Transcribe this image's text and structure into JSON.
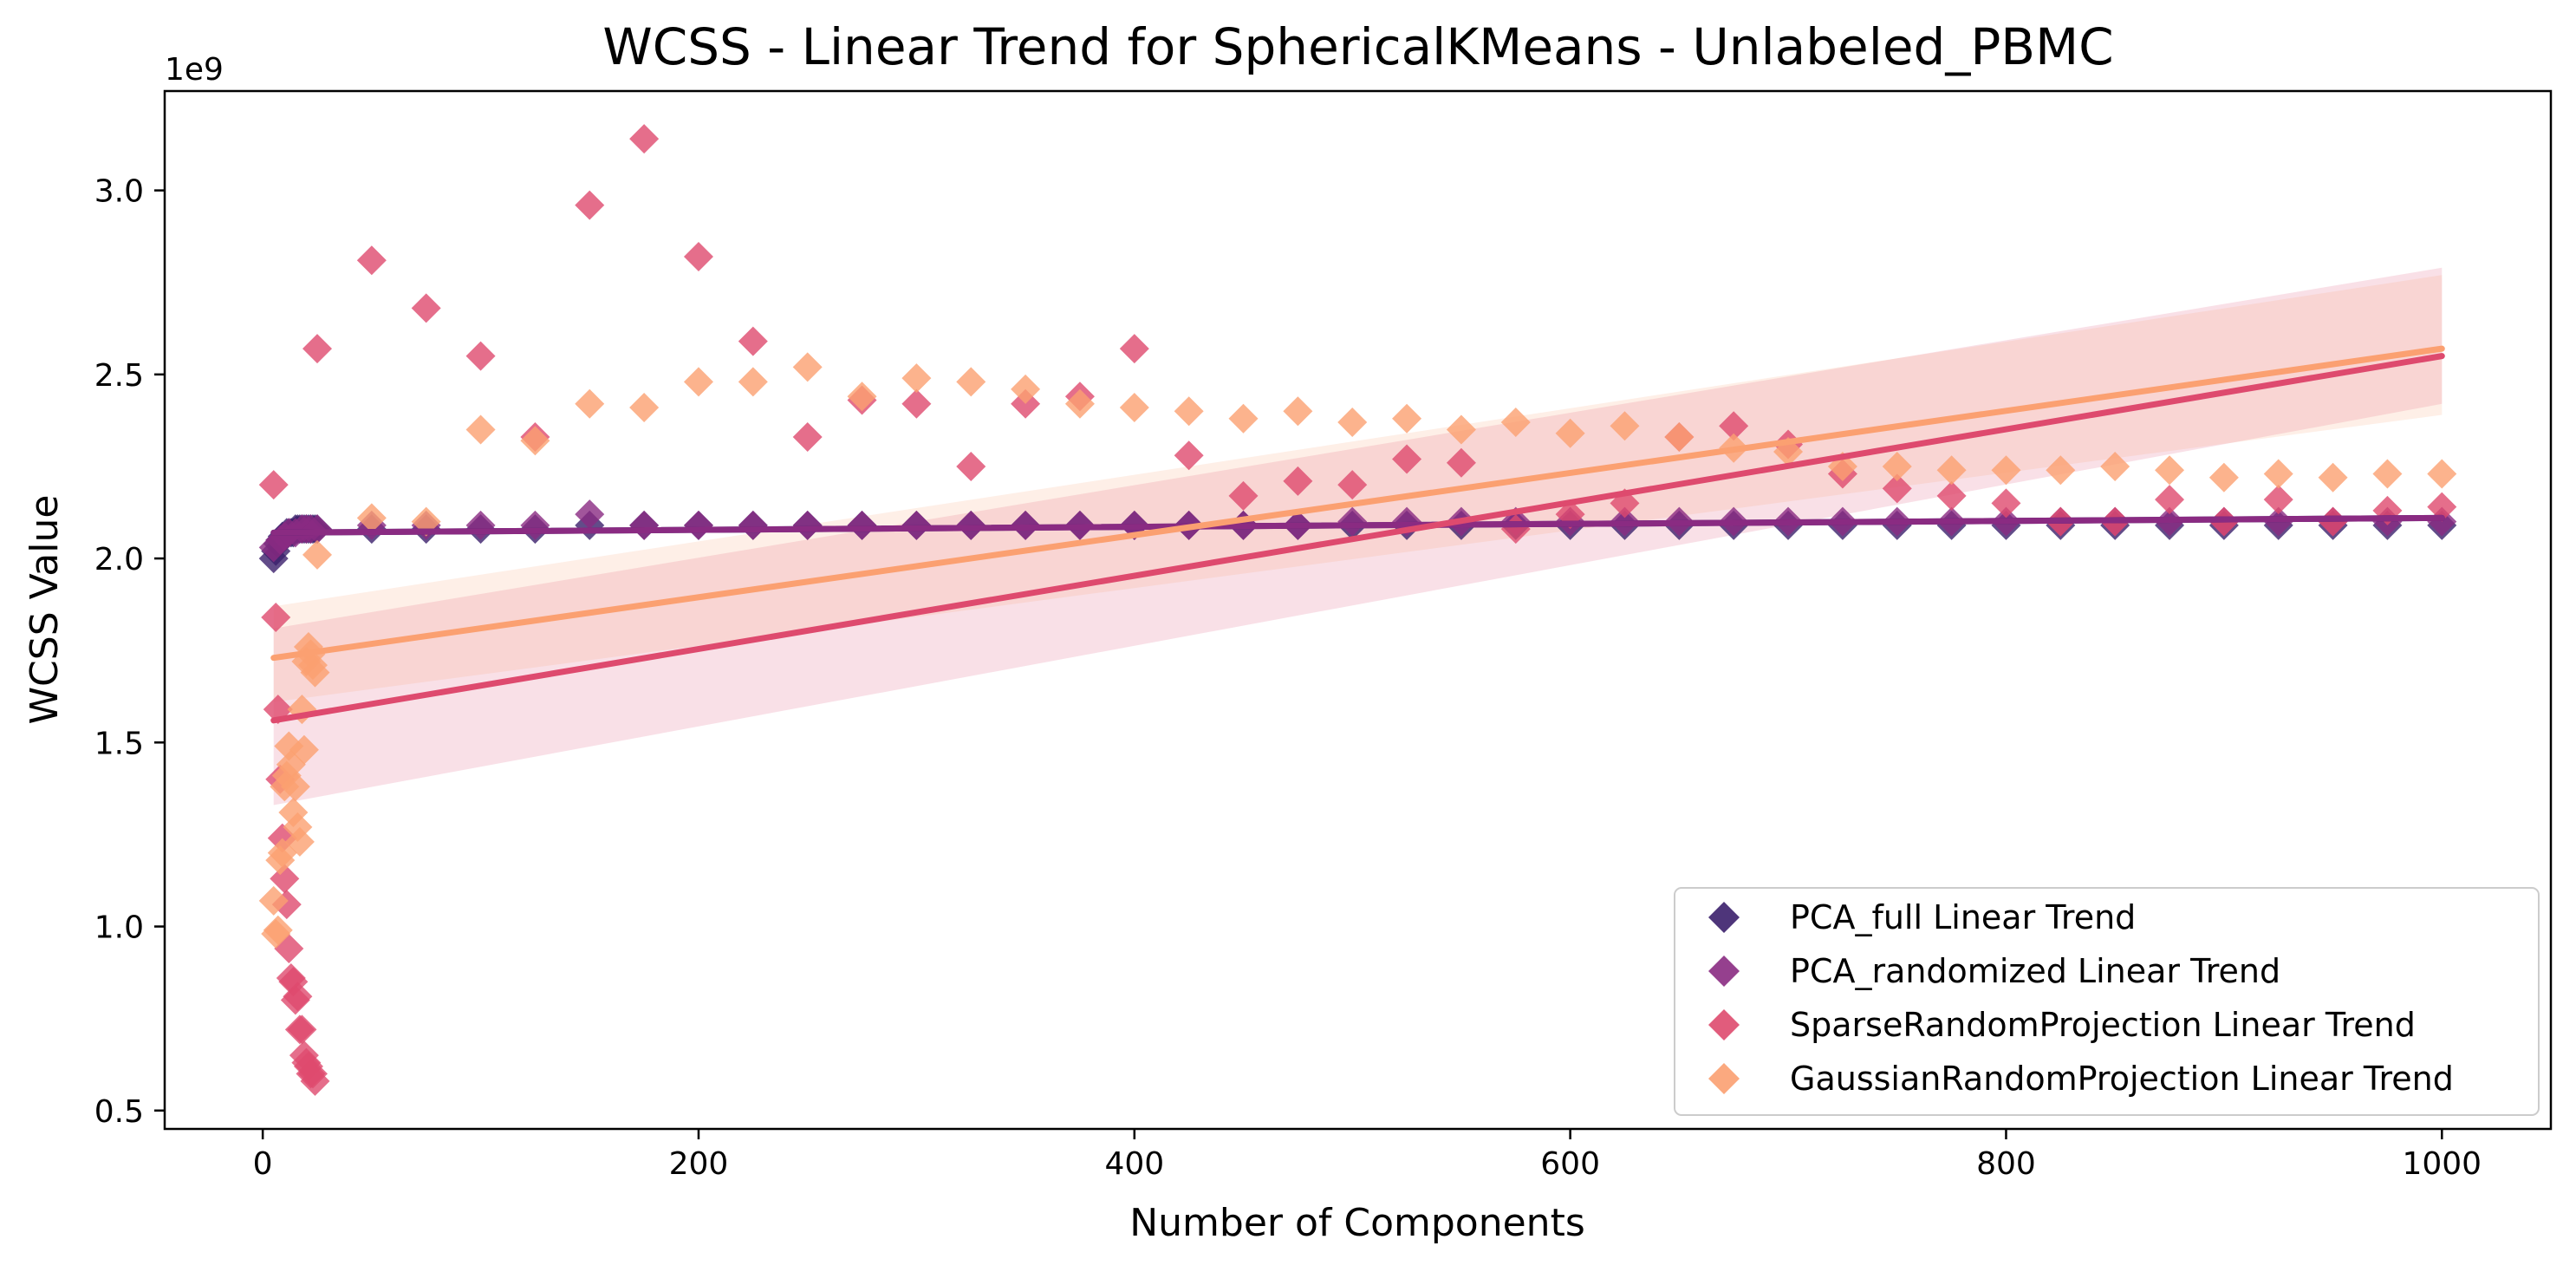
{
  "chart_data": {
    "type": "scatter",
    "title": "WCSS - Linear Trend for SphericalKMeans - Unlabeled_PBMC",
    "xlabel": "Number of Components",
    "ylabel": "WCSS Value",
    "y_scale_label": "1e9",
    "xlim": [
      -45,
      1050
    ],
    "ylim": [
      0.45,
      3.27
    ],
    "xticks": [
      0,
      200,
      400,
      600,
      800,
      1000
    ],
    "xtick_labels": [
      "0",
      "200",
      "400",
      "600",
      "800",
      "1000"
    ],
    "yticks": [
      0.5,
      1.0,
      1.5,
      2.0,
      2.5,
      3.0
    ],
    "ytick_labels": [
      "0.5",
      "1.0",
      "1.5",
      "2.0",
      "2.5",
      "3.0"
    ],
    "grid": false,
    "legend_position": "lower-right",
    "series": [
      {
        "name": "PCA_full Linear Trend",
        "color": "#3b1f6b",
        "marker": "diamond",
        "x": [
          5,
          6,
          7,
          8,
          9,
          10,
          11,
          12,
          13,
          14,
          15,
          16,
          17,
          18,
          19,
          20,
          21,
          22,
          23,
          24,
          25,
          50,
          75,
          100,
          125,
          150,
          175,
          200,
          225,
          250,
          275,
          300,
          325,
          350,
          375,
          400,
          425,
          450,
          475,
          500,
          525,
          550,
          575,
          600,
          625,
          650,
          675,
          700,
          725,
          750,
          775,
          800,
          825,
          850,
          875,
          900,
          925,
          950,
          975,
          1000
        ],
        "y": [
          2.0,
          2.02,
          2.04,
          2.05,
          2.06,
          2.06,
          2.07,
          2.07,
          2.07,
          2.07,
          2.08,
          2.08,
          2.08,
          2.08,
          2.08,
          2.08,
          2.08,
          2.08,
          2.08,
          2.08,
          2.08,
          2.08,
          2.08,
          2.08,
          2.08,
          2.09,
          2.09,
          2.09,
          2.09,
          2.09,
          2.09,
          2.09,
          2.09,
          2.09,
          2.09,
          2.09,
          2.09,
          2.09,
          2.09,
          2.09,
          2.09,
          2.09,
          2.09,
          2.09,
          2.09,
          2.09,
          2.09,
          2.09,
          2.09,
          2.09,
          2.09,
          2.09,
          2.09,
          2.09,
          2.09,
          2.09,
          2.09,
          2.09,
          2.09,
          2.09
        ],
        "trend": [
          2.07,
          2.11
        ]
      },
      {
        "name": "PCA_randomized Linear Trend",
        "color": "#8a2b82",
        "marker": "diamond",
        "x": [
          5,
          8,
          10,
          12,
          15,
          18,
          20,
          22,
          25,
          50,
          75,
          100,
          125,
          150,
          175,
          200,
          225,
          250,
          275,
          300,
          325,
          350,
          375,
          400,
          425,
          450,
          475,
          500,
          525,
          550,
          575,
          600,
          625,
          650,
          675,
          700,
          725,
          750,
          775,
          800,
          825,
          850,
          875,
          900,
          925,
          950,
          975,
          1000
        ],
        "y": [
          2.03,
          2.05,
          2.06,
          2.07,
          2.07,
          2.08,
          2.08,
          2.08,
          2.08,
          2.09,
          2.09,
          2.09,
          2.09,
          2.12,
          2.09,
          2.09,
          2.09,
          2.09,
          2.09,
          2.09,
          2.09,
          2.09,
          2.09,
          2.09,
          2.09,
          2.09,
          2.09,
          2.1,
          2.1,
          2.1,
          2.1,
          2.1,
          2.1,
          2.1,
          2.1,
          2.1,
          2.1,
          2.1,
          2.1,
          2.1,
          2.1,
          2.1,
          2.1,
          2.1,
          2.1,
          2.1,
          2.1,
          2.1
        ],
        "trend": [
          2.07,
          2.11
        ]
      },
      {
        "name": "SparseRandomProjection Linear Trend",
        "color": "#de4a6e",
        "marker": "diamond",
        "x": [
          5,
          6,
          7,
          8,
          9,
          10,
          11,
          12,
          13,
          14,
          15,
          16,
          17,
          18,
          19,
          20,
          21,
          22,
          23,
          24,
          25,
          50,
          75,
          100,
          125,
          150,
          175,
          200,
          225,
          250,
          275,
          300,
          325,
          350,
          375,
          400,
          425,
          450,
          475,
          500,
          525,
          550,
          575,
          600,
          625,
          650,
          675,
          700,
          725,
          750,
          775,
          800,
          825,
          850,
          875,
          900,
          925,
          950,
          975,
          1000
        ],
        "y": [
          2.2,
          1.84,
          1.59,
          1.4,
          1.24,
          1.13,
          1.06,
          0.94,
          0.86,
          0.85,
          0.8,
          0.81,
          0.72,
          0.72,
          0.65,
          0.63,
          0.62,
          0.6,
          0.6,
          0.58,
          2.57,
          2.81,
          2.68,
          2.55,
          2.33,
          2.96,
          3.14,
          2.82,
          2.59,
          2.33,
          2.43,
          2.42,
          2.25,
          2.42,
          2.44,
          2.57,
          2.28,
          2.17,
          2.21,
          2.2,
          2.27,
          2.26,
          2.08,
          2.12,
          2.15,
          2.33,
          2.36,
          2.31,
          2.23,
          2.19,
          2.17,
          2.15,
          2.1,
          2.1,
          2.16,
          2.1,
          2.16,
          2.1,
          2.13,
          2.14
        ],
        "trend": [
          1.56,
          2.55
        ],
        "ci_lower": [
          1.33,
          2.42
        ],
        "ci_upper": [
          1.81,
          2.79
        ]
      },
      {
        "name": "GaussianRandomProjection Linear Trend",
        "color": "#fba071",
        "marker": "diamond",
        "x": [
          5,
          6,
          7,
          8,
          9,
          10,
          11,
          12,
          13,
          14,
          15,
          16,
          17,
          18,
          19,
          20,
          21,
          22,
          23,
          24,
          25,
          50,
          75,
          100,
          125,
          150,
          175,
          200,
          225,
          250,
          275,
          300,
          325,
          350,
          375,
          400,
          425,
          450,
          475,
          500,
          525,
          550,
          575,
          600,
          625,
          650,
          675,
          700,
          725,
          750,
          775,
          800,
          825,
          850,
          875,
          900,
          925,
          950,
          975,
          1000
        ],
        "y": [
          1.07,
          0.98,
          0.99,
          1.18,
          1.2,
          1.38,
          1.41,
          1.49,
          1.44,
          1.31,
          1.38,
          1.27,
          1.23,
          1.59,
          1.48,
          1.72,
          1.76,
          1.74,
          1.71,
          1.69,
          2.01,
          2.11,
          2.1,
          2.35,
          2.32,
          2.42,
          2.41,
          2.48,
          2.48,
          2.52,
          2.44,
          2.49,
          2.48,
          2.46,
          2.42,
          2.41,
          2.4,
          2.38,
          2.4,
          2.37,
          2.38,
          2.35,
          2.37,
          2.34,
          2.36,
          2.33,
          2.3,
          2.29,
          2.25,
          2.25,
          2.24,
          2.24,
          2.24,
          2.25,
          2.24,
          2.22,
          2.23,
          2.22,
          2.23,
          2.23
        ],
        "trend": [
          1.73,
          2.57
        ],
        "ci_lower": [
          1.61,
          2.39
        ],
        "ci_upper": [
          1.87,
          2.77
        ]
      }
    ]
  }
}
